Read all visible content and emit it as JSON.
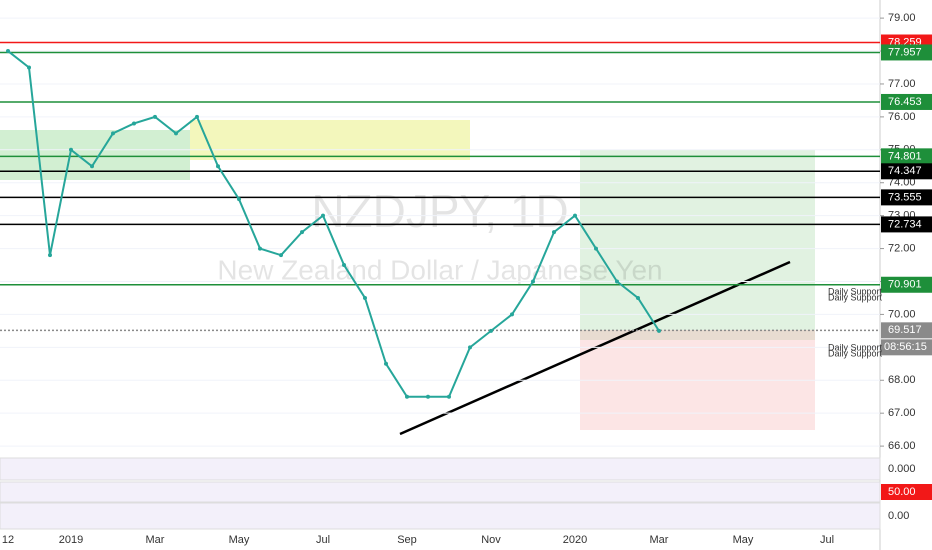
{
  "chart_data": {
    "type": "line",
    "title": "NZDJPY, 1D",
    "subtitle": "New Zealand Dollar / Japanese Yen",
    "categories": [
      "12",
      null,
      null,
      "2019",
      null,
      null,
      null,
      "Mar",
      null,
      null,
      null,
      "May",
      null,
      null,
      null,
      "Jul",
      null,
      null,
      null,
      "Sep",
      null,
      null,
      null,
      "Nov",
      null,
      null,
      null,
      "2020",
      null,
      null,
      null,
      "Mar",
      null,
      null,
      null,
      "May",
      null,
      null,
      null,
      "Jul",
      null
    ],
    "values": [
      78.0,
      77.5,
      71.8,
      75.0,
      74.5,
      75.5,
      75.8,
      76.0,
      75.5,
      76.0,
      74.5,
      73.5,
      72.0,
      71.8,
      72.5,
      73.0,
      71.5,
      70.5,
      68.5,
      67.5,
      67.5,
      67.5,
      69.0,
      69.5,
      70.0,
      71.0,
      72.5,
      73.0,
      72.0,
      71.0,
      70.5,
      69.5,
      null,
      null,
      null,
      null,
      null,
      null,
      null,
      null,
      null
    ],
    "color": "#26a69a",
    "ylim": [
      65.73,
      79.55
    ],
    "yticks": [
      {
        "value": 66,
        "label": "66.00"
      },
      {
        "value": 67,
        "label": "67.00"
      },
      {
        "value": 68,
        "label": "68.00"
      },
      {
        "value": 69,
        "label": "69.00"
      },
      {
        "value": 70,
        "label": "70.00"
      },
      {
        "value": 71,
        "label": "71.00"
      },
      {
        "value": 72,
        "label": "72.00"
      },
      {
        "value": 73,
        "label": "73.00"
      },
      {
        "value": 74,
        "label": "74.00"
      },
      {
        "value": 75,
        "label": "75.00"
      },
      {
        "value": 76,
        "label": "76.00"
      },
      {
        "value": 77,
        "label": "77.00"
      },
      {
        "value": 78,
        "label": "78.00"
      },
      {
        "value": 79,
        "label": "79.00"
      }
    ],
    "price_levels": [
      {
        "value": 78.259,
        "label": "78.259",
        "color": "#f21818"
      },
      {
        "value": 77.957,
        "label": "77.957",
        "color": "#1e8f3a"
      },
      {
        "value": 76.453,
        "label": "76.453",
        "color": "#1e8f3a"
      },
      {
        "value": 74.801,
        "label": "74.801",
        "color": "#1e8f3a"
      },
      {
        "value": 74.347,
        "label": "74.347",
        "color": "#000000"
      },
      {
        "value": 73.555,
        "label": "73.555",
        "color": "#000000"
      },
      {
        "value": 72.734,
        "label": "72.734",
        "color": "#000000"
      },
      {
        "value": 70.901,
        "label": "70.901",
        "color": "#1e8f3a"
      },
      {
        "value": 69.517,
        "label": "69.517",
        "color": "#8a8a8a"
      }
    ],
    "countdown": "08:56:15",
    "support_labels": [
      "Daily Support",
      "Daily Support",
      "Daily Support",
      "Daily Support"
    ],
    "panels": [
      {
        "label": "0.000",
        "color": "#ffffff"
      },
      {
        "label": "50.00",
        "color": "#f21818"
      },
      {
        "label": "0.00",
        "color": "#ffffff"
      }
    ]
  }
}
